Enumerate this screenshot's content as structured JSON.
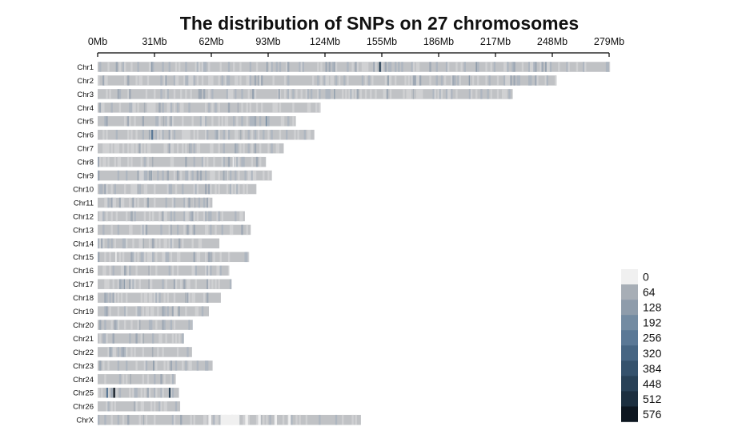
{
  "chart_data": {
    "type": "heatmap",
    "title": "The distribution of SNPs on 27 chromosomes",
    "xlabel": "",
    "ylabel": "",
    "x_unit": "Mb",
    "xlim": [
      0,
      279
    ],
    "x_ticks": [
      {
        "value": 0,
        "label": "0Mb"
      },
      {
        "value": 31,
        "label": "31Mb"
      },
      {
        "value": 62,
        "label": "62Mb"
      },
      {
        "value": 93,
        "label": "93Mb"
      },
      {
        "value": 124,
        "label": "124Mb"
      },
      {
        "value": 155,
        "label": "155Mb"
      },
      {
        "value": 186,
        "label": "186Mb"
      },
      {
        "value": 217,
        "label": "217Mb"
      },
      {
        "value": 248,
        "label": "248Mb"
      },
      {
        "value": 279,
        "label": "279Mb"
      }
    ],
    "chromosomes": [
      {
        "name": "Chr1",
        "length_mb": 279.4,
        "hotspots": [
          {
            "pos": 29.5,
            "level": 2
          },
          {
            "pos": 92.4,
            "level": 2
          },
          {
            "pos": 154.0,
            "level": 7
          },
          {
            "pos": 206.6,
            "level": 2
          },
          {
            "pos": 244.5,
            "level": 2
          }
        ]
      },
      {
        "name": "Chr2",
        "length_mb": 250.3,
        "hotspots": [
          {
            "pos": 37.3,
            "level": 2
          },
          {
            "pos": 87.6,
            "level": 1
          },
          {
            "pos": 158.5,
            "level": 2
          },
          {
            "pos": 202.8,
            "level": 2
          }
        ]
      },
      {
        "name": "Chr3",
        "length_mb": 226.4,
        "hotspots": [
          {
            "pos": 84.7,
            "level": 2
          },
          {
            "pos": 99.0,
            "level": 2
          },
          {
            "pos": 129.2,
            "level": 2
          },
          {
            "pos": 172.3,
            "level": 1
          }
        ]
      },
      {
        "name": "Chr4",
        "length_mb": 121.5,
        "hotspots": [
          {
            "pos": 25.6,
            "level": 1
          },
          {
            "pos": 76.6,
            "level": 1
          }
        ]
      },
      {
        "name": "Chr5",
        "length_mb": 108.1,
        "hotspots": [
          {
            "pos": 36.0,
            "level": 1
          },
          {
            "pos": 92.0,
            "level": 3
          }
        ]
      },
      {
        "name": "Chr6",
        "length_mb": 118.2,
        "hotspots": [
          {
            "pos": 29.7,
            "level": 4
          },
          {
            "pos": 78.0,
            "level": 1
          }
        ]
      },
      {
        "name": "Chr7",
        "length_mb": 101.5,
        "hotspots": [
          {
            "pos": 50.1,
            "level": 1
          }
        ]
      },
      {
        "name": "Chr8",
        "length_mb": 91.8,
        "hotspots": [
          {
            "pos": 30.0,
            "level": 1
          },
          {
            "pos": 74.0,
            "level": 0
          }
        ]
      },
      {
        "name": "Chr9",
        "length_mb": 95.0,
        "hotspots": [
          {
            "pos": 29.3,
            "level": 2
          },
          {
            "pos": 70.0,
            "level": 1
          }
        ]
      },
      {
        "name": "Chr10",
        "length_mb": 86.5,
        "hotspots": [
          {
            "pos": 22.0,
            "level": 1
          }
        ]
      },
      {
        "name": "Chr11",
        "length_mb": 62.6,
        "hotspots": [
          {
            "pos": 27.5,
            "level": 2
          },
          {
            "pos": 53.0,
            "level": 1
          }
        ]
      },
      {
        "name": "Chr12",
        "length_mb": 80.3,
        "hotspots": [
          {
            "pos": 19.0,
            "level": 1
          }
        ]
      },
      {
        "name": "Chr13",
        "length_mb": 83.5,
        "hotspots": [
          {
            "pos": 40.0,
            "level": 1
          }
        ]
      },
      {
        "name": "Chr14",
        "length_mb": 66.4,
        "hotspots": [
          {
            "pos": 25.0,
            "level": 1
          }
        ]
      },
      {
        "name": "Chr15",
        "length_mb": 82.5,
        "hotspots": [
          {
            "pos": 10.0,
            "level": 0
          },
          {
            "pos": 62.0,
            "level": 1
          }
        ]
      },
      {
        "name": "Chr16",
        "length_mb": 71.7,
        "hotspots": [
          {
            "pos": 28.0,
            "level": 1
          }
        ]
      },
      {
        "name": "Chr17",
        "length_mb": 73.0,
        "hotspots": [
          {
            "pos": 14.6,
            "level": 2
          },
          {
            "pos": 28.0,
            "level": 1
          }
        ]
      },
      {
        "name": "Chr18",
        "length_mb": 67.2,
        "hotspots": [
          {
            "pos": 48.0,
            "level": 1
          }
        ]
      },
      {
        "name": "Chr19",
        "length_mb": 60.7,
        "hotspots": [
          {
            "pos": 44.4,
            "level": 2
          }
        ]
      },
      {
        "name": "Chr20",
        "length_mb": 51.7,
        "hotspots": [
          {
            "pos": 23.0,
            "level": 1
          }
        ]
      },
      {
        "name": "Chr21",
        "length_mb": 47.1,
        "hotspots": [
          {
            "pos": 25.0,
            "level": 1
          }
        ]
      },
      {
        "name": "Chr22",
        "length_mb": 51.4,
        "hotspots": [
          {
            "pos": 30.0,
            "level": 1
          }
        ]
      },
      {
        "name": "Chr23",
        "length_mb": 62.7,
        "hotspots": [
          {
            "pos": 30.5,
            "level": 2
          }
        ]
      },
      {
        "name": "Chr24",
        "length_mb": 42.6,
        "hotspots": [
          {
            "pos": 18.0,
            "level": 1
          }
        ]
      },
      {
        "name": "Chr25",
        "length_mb": 44.3,
        "hotspots": [
          {
            "pos": 5.2,
            "level": 4
          },
          {
            "pos": 9.0,
            "level": 9
          },
          {
            "pos": 39.3,
            "level": 7
          }
        ]
      },
      {
        "name": "Chr26",
        "length_mb": 45.0,
        "hotspots": [
          {
            "pos": 20.0,
            "level": 1
          }
        ]
      },
      {
        "name": "ChrX",
        "length_mb": 143.6,
        "hotspots": [
          {
            "pos": 25.0,
            "level": 1
          }
        ],
        "gaps": [
          {
            "start": 60.5,
            "end": 62.0
          },
          {
            "start": 67.0,
            "end": 77.4
          },
          {
            "start": 80.5,
            "end": 82.0
          },
          {
            "start": 87.5,
            "end": 89.0
          },
          {
            "start": 96.5,
            "end": 97.8
          },
          {
            "start": 104.0,
            "end": 105.3
          }
        ]
      }
    ],
    "legend": {
      "placement": "bottom-right",
      "levels": [
        {
          "label": "0",
          "color": "#f0f0f0"
        },
        {
          "label": "64",
          "color": "#a7aeb6"
        },
        {
          "label": "128",
          "color": "#8e9cab"
        },
        {
          "label": "192",
          "color": "#738ba2"
        },
        {
          "label": "256",
          "color": "#5a7896"
        },
        {
          "label": "320",
          "color": "#466583"
        },
        {
          "label": "384",
          "color": "#35526d"
        },
        {
          "label": "448",
          "color": "#284157"
        },
        {
          "label": "512",
          "color": "#1c2f40"
        },
        {
          "label": "576",
          "color": "#0d1620"
        }
      ]
    },
    "colors": {
      "bar_base": "#c0c2c5",
      "bar_light": "#d0d1d3",
      "bar_blue": "#aeb6c0",
      "axis": "#000000",
      "text": "#111111"
    },
    "grid": false
  }
}
